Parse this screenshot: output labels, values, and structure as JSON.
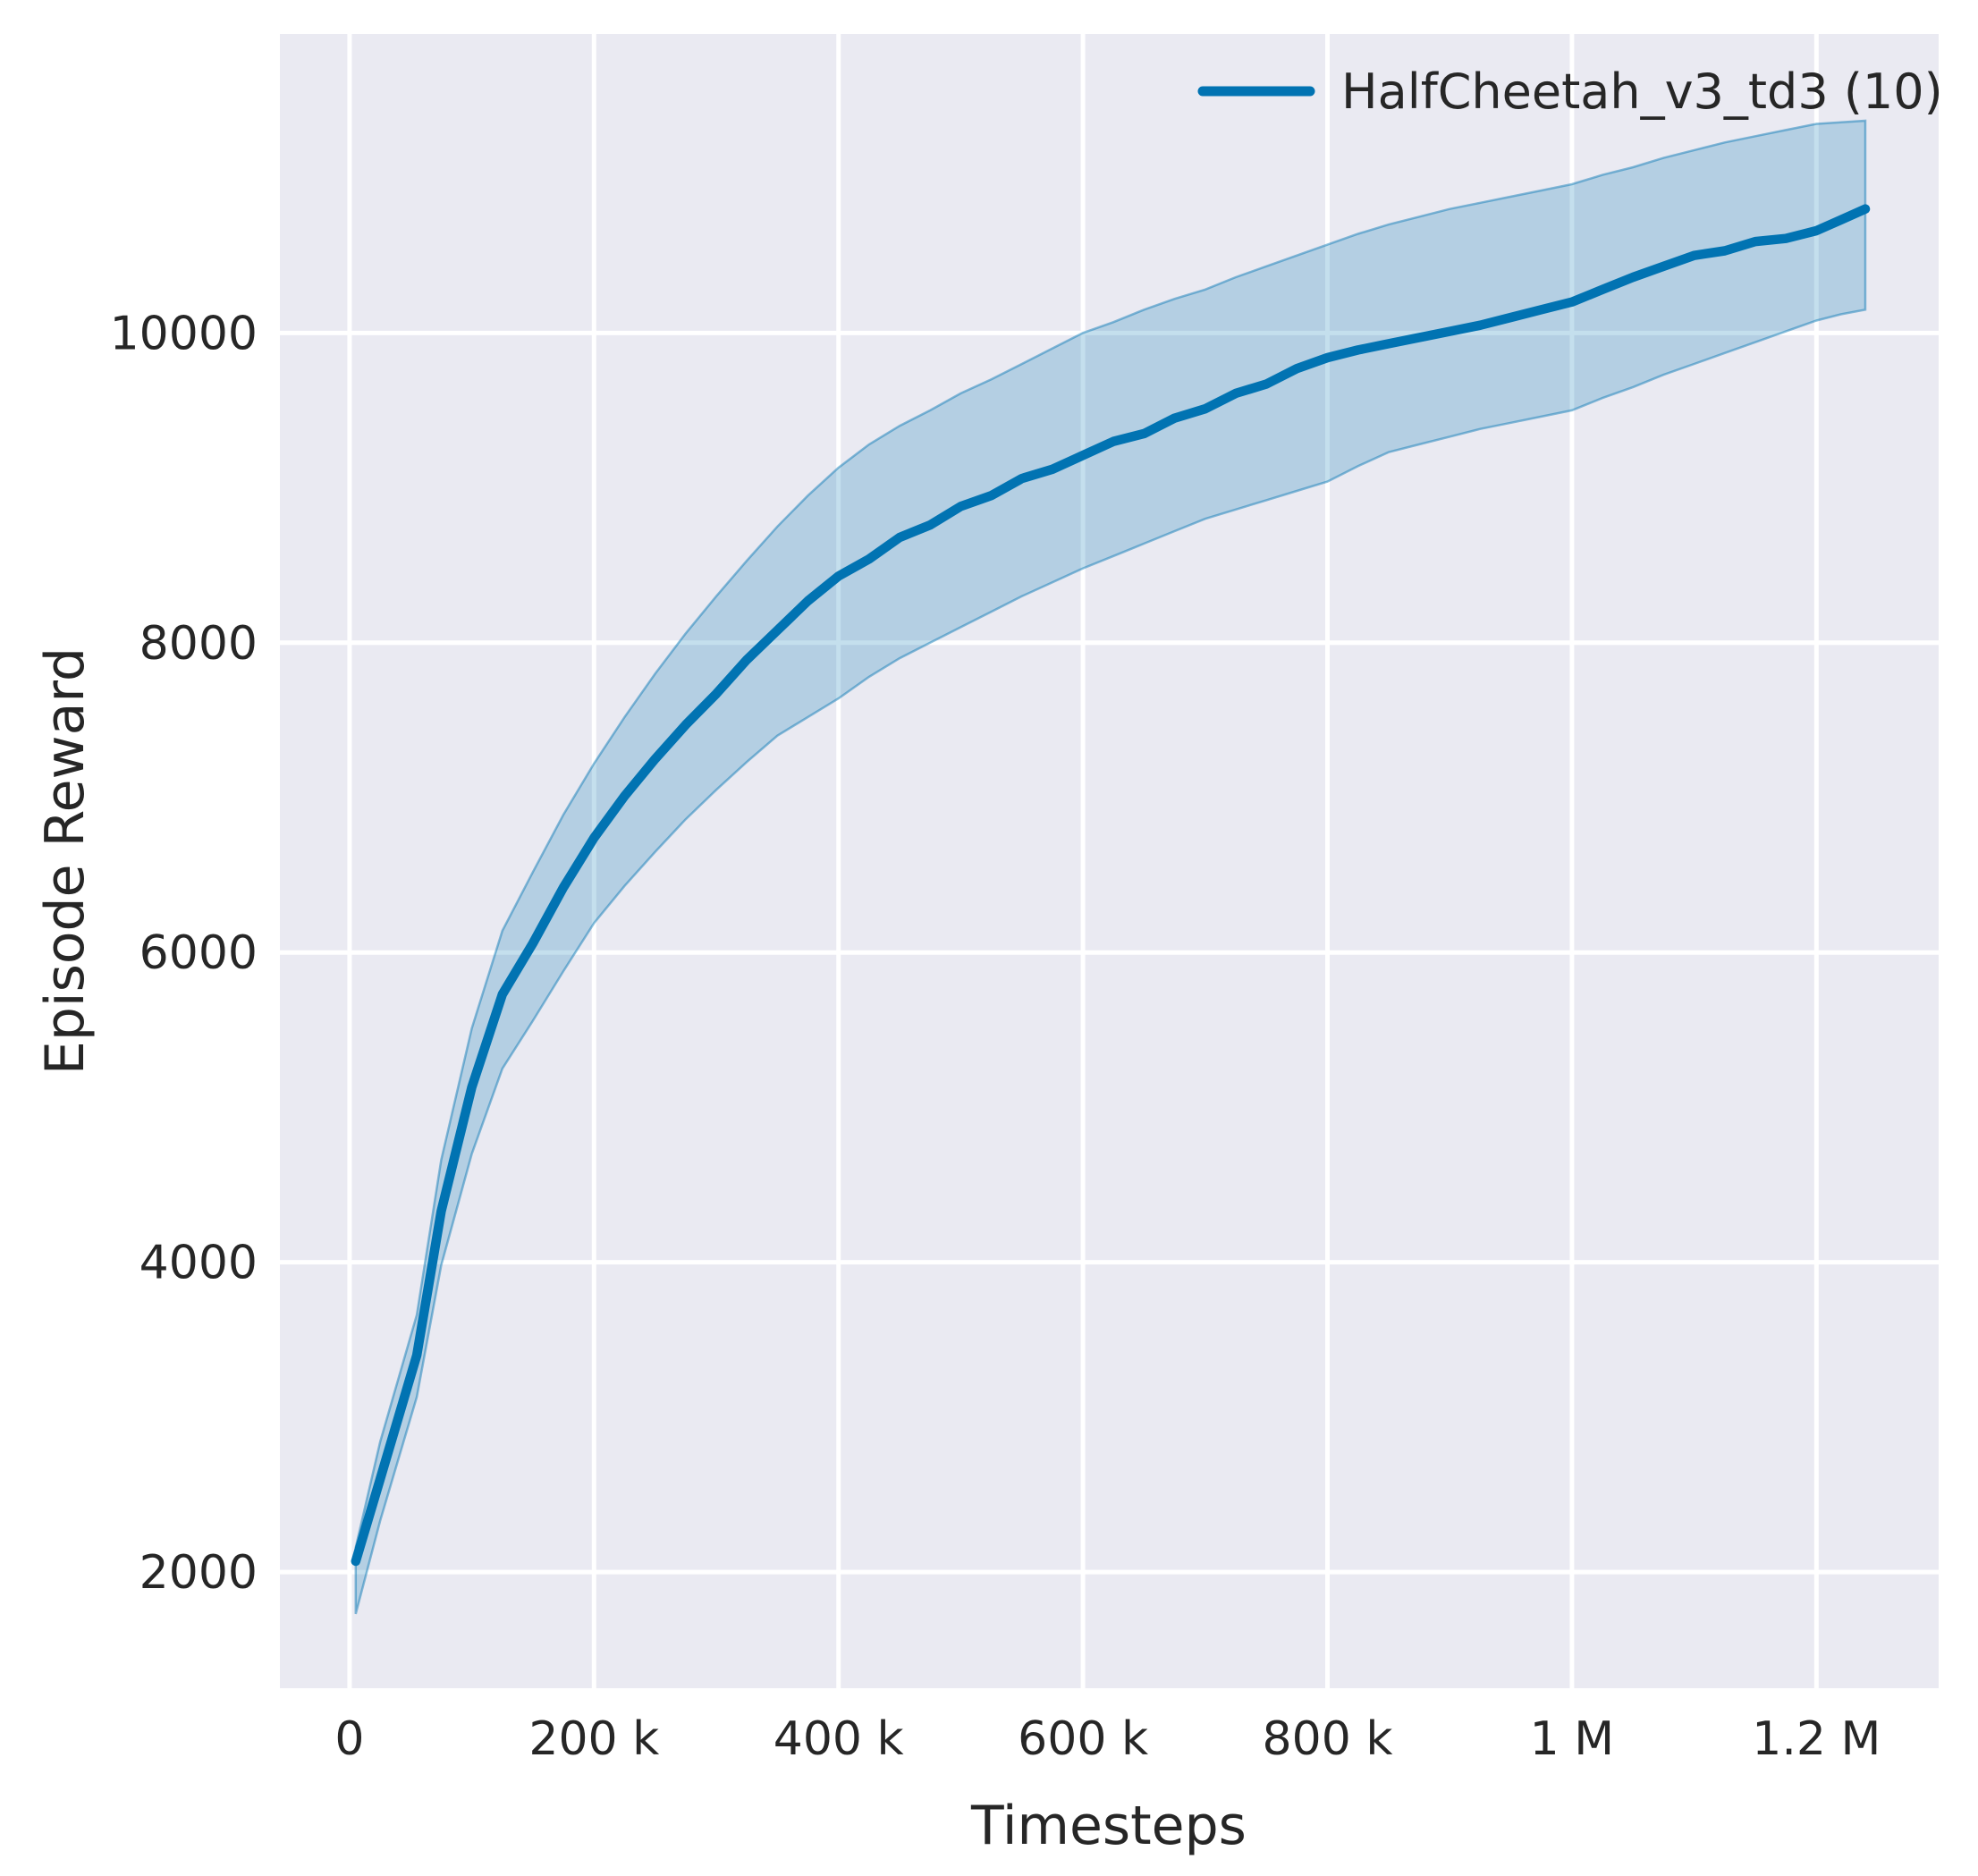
{
  "chart_data": {
    "type": "line",
    "title": "",
    "xlabel": "Timesteps",
    "ylabel": "Episode Reward",
    "grid": true,
    "legend": {
      "position": "upper right",
      "frame": false,
      "entries": [
        {
          "label": "HalfCheetah_v3_td3 (10)",
          "color": "#0173b2"
        }
      ]
    },
    "x_range": [
      -57000,
      1300000
    ],
    "y_range": [
      1250,
      11930
    ],
    "x_ticks": [
      {
        "value": 0,
        "label": "0"
      },
      {
        "value": 200000,
        "label": "200 k"
      },
      {
        "value": 400000,
        "label": "400 k"
      },
      {
        "value": 600000,
        "label": "600 k"
      },
      {
        "value": 800000,
        "label": "800 k"
      },
      {
        "value": 1000000,
        "label": "1 M"
      },
      {
        "value": 1200000,
        "label": "1.2 M"
      }
    ],
    "y_ticks": [
      {
        "value": 2000,
        "label": "2000"
      },
      {
        "value": 4000,
        "label": "4000"
      },
      {
        "value": 6000,
        "label": "6000"
      },
      {
        "value": 8000,
        "label": "8000"
      },
      {
        "value": 10000,
        "label": "10000"
      }
    ],
    "series": [
      {
        "name": "HalfCheetah_v3_td3 (10)",
        "color": "#0173b2",
        "x": [
          5000,
          25000,
          55000,
          75000,
          100000,
          125000,
          150000,
          175000,
          200000,
          225000,
          250000,
          275000,
          300000,
          325000,
          350000,
          375000,
          400000,
          425000,
          450000,
          475000,
          500000,
          525000,
          550000,
          575000,
          600000,
          625000,
          650000,
          675000,
          700000,
          725000,
          750000,
          775000,
          800000,
          825000,
          850000,
          875000,
          900000,
          925000,
          950000,
          975000,
          1000000,
          1025000,
          1050000,
          1075000,
          1100000,
          1125000,
          1150000,
          1175000,
          1200000,
          1220000,
          1240000
        ],
        "mean": [
          2070,
          2600,
          3400,
          4330,
          5130,
          5730,
          6060,
          6420,
          6740,
          7010,
          7250,
          7470,
          7670,
          7890,
          8080,
          8270,
          8430,
          8540,
          8680,
          8760,
          8880,
          8950,
          9060,
          9120,
          9210,
          9300,
          9350,
          9450,
          9510,
          9610,
          9670,
          9770,
          9840,
          9890,
          9930,
          9970,
          10010,
          10050,
          10100,
          10150,
          10200,
          10280,
          10360,
          10430,
          10500,
          10530,
          10590,
          10610,
          10660,
          10730,
          10800
        ],
        "band_low": [
          1730,
          2330,
          3130,
          3980,
          4700,
          5250,
          5560,
          5880,
          6190,
          6430,
          6650,
          6860,
          7050,
          7230,
          7400,
          7520,
          7640,
          7780,
          7900,
          8000,
          8100,
          8200,
          8300,
          8390,
          8480,
          8560,
          8640,
          8720,
          8800,
          8860,
          8920,
          8980,
          9040,
          9140,
          9230,
          9280,
          9330,
          9380,
          9420,
          9460,
          9500,
          9580,
          9650,
          9730,
          9800,
          9870,
          9940,
          10010,
          10080,
          10120,
          10150
        ],
        "band_high": [
          2160,
          2840,
          3660,
          4660,
          5510,
          6140,
          6520,
          6890,
          7220,
          7520,
          7800,
          8060,
          8300,
          8530,
          8750,
          8950,
          9130,
          9280,
          9400,
          9500,
          9610,
          9700,
          9800,
          9900,
          10000,
          10070,
          10150,
          10220,
          10280,
          10360,
          10430,
          10500,
          10570,
          10640,
          10700,
          10750,
          10800,
          10840,
          10880,
          10920,
          10960,
          11020,
          11070,
          11130,
          11180,
          11230,
          11270,
          11310,
          11350,
          11360,
          11370
        ]
      }
    ]
  },
  "colors": {
    "figure_background": "#ffffff",
    "axes_background": "#eaeaf2",
    "grid": "#ffffff",
    "line": "#0173b2",
    "band_fill": "#0173b2",
    "text": "#262626"
  }
}
